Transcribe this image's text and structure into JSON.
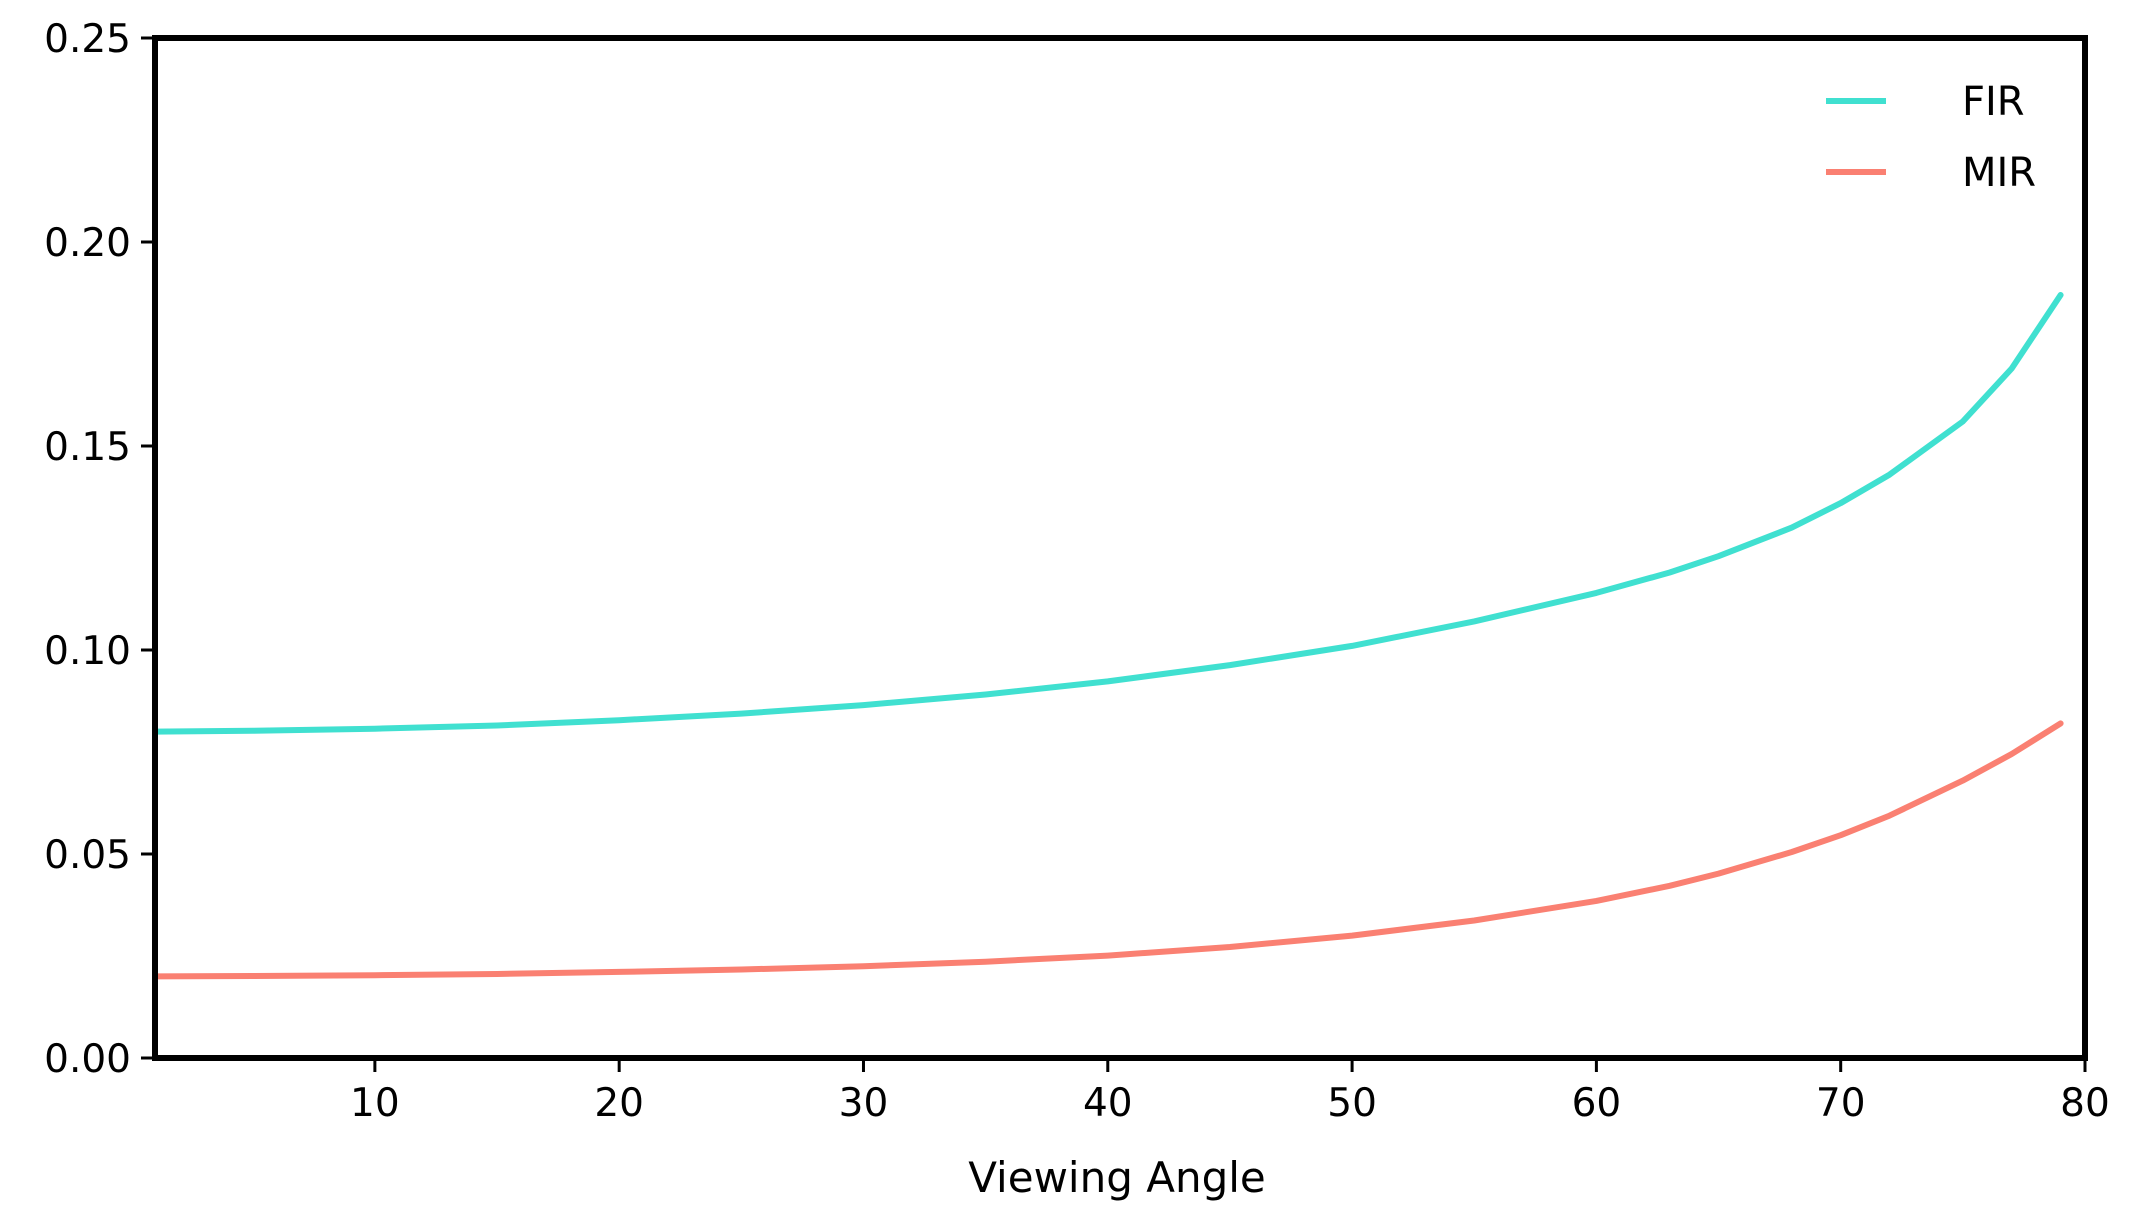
{
  "chart_data": {
    "type": "line",
    "title": "",
    "xlabel": "Viewing Angle",
    "ylabel": "",
    "xlim": [
      1,
      80
    ],
    "ylim": [
      0,
      0.25
    ],
    "x_ticks": [
      "10",
      "20",
      "30",
      "40",
      "50",
      "60",
      "70",
      "80"
    ],
    "y_ticks": [
      "0.00",
      "0.05",
      "0.10",
      "0.15",
      "0.20",
      "0.25"
    ],
    "x_tick_values": [
      10,
      20,
      30,
      40,
      50,
      60,
      70,
      80
    ],
    "y_tick_values": [
      0,
      0.05,
      0.1,
      0.15,
      0.2,
      0.25
    ],
    "grid": false,
    "legend_position": "top-right",
    "x": [
      1,
      5,
      10,
      15,
      20,
      25,
      30,
      35,
      40,
      45,
      50,
      55,
      60,
      63,
      65,
      68,
      70,
      72,
      75,
      77,
      79
    ],
    "series": [
      {
        "name": "FIR",
        "color": "#40E0D0",
        "values": [
          0.08,
          0.0802,
          0.0807,
          0.0815,
          0.0828,
          0.0844,
          0.0865,
          0.0891,
          0.0923,
          0.0963,
          0.101,
          0.107,
          0.114,
          0.119,
          0.123,
          0.13,
          0.136,
          0.143,
          0.156,
          0.169,
          0.187
        ]
      },
      {
        "name": "MIR",
        "color": "#FA8072",
        "values": [
          0.02,
          0.0201,
          0.0203,
          0.0206,
          0.0211,
          0.0217,
          0.0225,
          0.0236,
          0.0251,
          0.0272,
          0.03,
          0.0337,
          0.0385,
          0.0422,
          0.0452,
          0.0505,
          0.0546,
          0.0594,
          0.068,
          0.0745,
          0.082
        ]
      }
    ]
  }
}
